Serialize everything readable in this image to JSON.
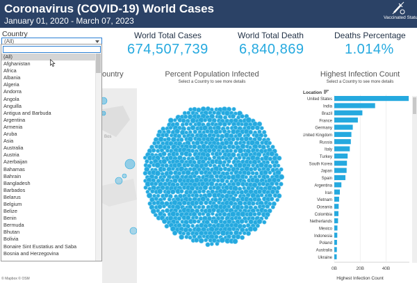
{
  "header": {
    "title": "Coronavirus (COVID-19) World Cases",
    "subtitle": "January 01, 2020 - March 07, 2023",
    "vaccinated_label": "Vaccinated Status",
    "colors": {
      "banner": "#2b4266",
      "accent": "#25a9df"
    }
  },
  "filter": {
    "label": "Country",
    "selected": "(All)",
    "options": [
      "(All)",
      "Afghanistan",
      "Africa",
      "Albania",
      "Algeria",
      "Andorra",
      "Angola",
      "Anguilla",
      "Antigua and Barbuda",
      "Argentina",
      "Armenia",
      "Aruba",
      "Asia",
      "Australia",
      "Austria",
      "Azerbaijan",
      "Bahamas",
      "Bahrain",
      "Bangladesh",
      "Barbados",
      "Belarus",
      "Belgium",
      "Belize",
      "Benin",
      "Bermuda",
      "Bhutan",
      "Bolivia",
      "Bonaire Sint Eustatius and Saba",
      "Bosnia and Herzegovina"
    ]
  },
  "kpis": [
    {
      "label": "World Total Cases",
      "value": "674,507,739"
    },
    {
      "label": "World Total Death",
      "value": "6,840,869"
    },
    {
      "label": "Deaths Percentage",
      "value": "1.014%"
    }
  ],
  "map": {
    "title": "ountry",
    "credit": "© Mapbox  © OSM",
    "label_fragment": "Bos"
  },
  "bubble": {
    "title": "Percent Population Infected",
    "subtitle": "Select a Country to see more details"
  },
  "bars": {
    "title": "Highest Infection Count",
    "subtitle": "Select a Country to see more details",
    "column_header": "Location",
    "x_axis_label": "Highest Infection Count"
  },
  "chart_data": {
    "type": "bar",
    "orientation": "horizontal",
    "title": "Highest Infection Count",
    "xlabel": "Highest Infection Count",
    "ylabel": "Location",
    "xlim": [
      0,
      58
    ],
    "x_ticks": [
      "0B",
      "20B",
      "40B"
    ],
    "x_tick_values": [
      0,
      20,
      40
    ],
    "grid": true,
    "color": "#25a9df",
    "categories": [
      "United States",
      "India",
      "Brazil",
      "France",
      "Germany",
      "United Kingdom",
      "Russia",
      "Italy",
      "Turkey",
      "South Korea",
      "Japan",
      "Spain",
      "Argentina",
      "Iran",
      "Vietnam",
      "Oceania",
      "Colombia",
      "Netherlands",
      "Mexico",
      "Indonesia",
      "Poland",
      "Australia",
      "Ukraine"
    ],
    "values": [
      57.5,
      31.5,
      21.7,
      18.2,
      14.3,
      13.2,
      12.8,
      12.0,
      10.3,
      9.8,
      9.5,
      8.6,
      5.5,
      4.3,
      3.7,
      3.4,
      3.2,
      2.9,
      2.4,
      2.3,
      2.1,
      2.0,
      1.9
    ]
  }
}
